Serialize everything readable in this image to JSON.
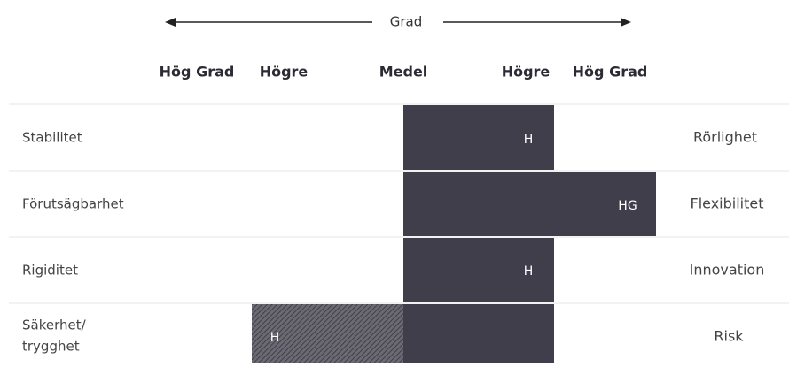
{
  "scale": {
    "title": "Grad",
    "columns": [
      "Hög Grad",
      "Högre",
      "Medel",
      "Högre",
      "Hög Grad"
    ]
  },
  "rows": [
    {
      "left": "Stabilitet",
      "right": "Rörlighet",
      "bar_label": "H"
    },
    {
      "left": "Förutsägbarhet",
      "right": "Flexibilitet",
      "bar_label": "HG"
    },
    {
      "left": "Rigiditet",
      "right": "Innovation",
      "bar_label": "H"
    },
    {
      "left": [
        "Säkerhet/",
        "trygghet"
      ],
      "right": "Risk",
      "bar_label": "H"
    }
  ]
}
